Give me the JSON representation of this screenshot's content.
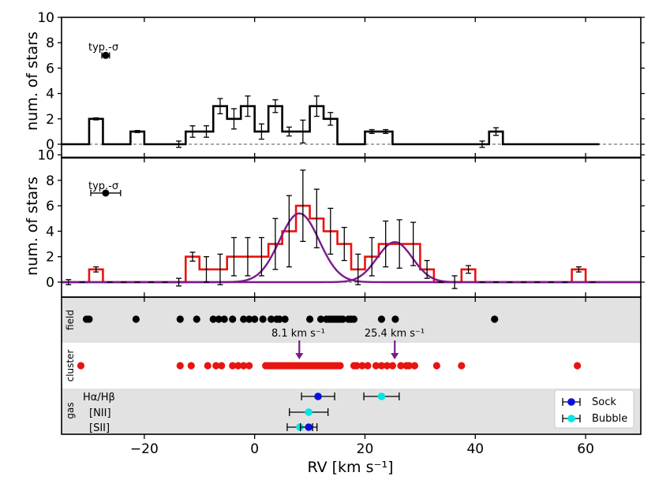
{
  "chart_data": {
    "type": "bar",
    "xlabel": "RV [km s⁻¹]",
    "xlim": [
      -35,
      70
    ],
    "xticks": [
      -20,
      0,
      20,
      40,
      60
    ],
    "bin_width": 2.5,
    "top_panel": {
      "ylabel": "num. of stars",
      "ylim": [
        0,
        10
      ],
      "yticks": [
        0,
        2,
        4,
        6,
        8,
        10
      ],
      "typ_sigma_label": "typ.-σ",
      "typ_sigma_point": {
        "x": -27,
        "y": 7,
        "xerr": 0.7
      },
      "bin_starts": [
        -35,
        -32.5,
        -30,
        -27.5,
        -25,
        -22.5,
        -20,
        -17.5,
        -15,
        -12.5,
        -10,
        -7.5,
        -5,
        -2.5,
        0,
        2.5,
        5,
        7.5,
        10,
        12.5,
        15,
        17.5,
        20,
        22.5,
        25,
        27.5,
        30,
        32.5,
        35,
        37.5,
        40,
        42.5,
        45,
        47.5,
        50,
        52.5,
        55,
        57.5,
        60
      ],
      "counts": [
        0,
        0,
        2,
        0,
        0,
        1,
        0,
        0,
        0,
        1,
        1,
        3,
        2,
        3,
        1,
        3,
        1,
        1,
        3,
        2,
        0,
        0,
        1,
        1,
        0,
        0,
        0,
        0,
        0,
        0,
        0,
        1,
        0,
        0,
        0,
        0,
        0,
        0,
        0
      ],
      "errors": [
        0,
        0,
        0.08,
        0,
        0,
        0.08,
        0,
        0,
        0.25,
        0.45,
        0.45,
        0.6,
        0.8,
        0.8,
        0.6,
        0.5,
        0.35,
        0.9,
        0.8,
        0.5,
        0,
        0,
        0.15,
        0.15,
        0,
        0,
        0,
        0,
        0,
        0,
        0.25,
        0.3,
        0,
        0,
        0,
        0,
        0,
        0,
        0
      ]
    },
    "middle_panel": {
      "ylabel": "num. of stars",
      "ylim": [
        -0.7,
        10
      ],
      "yticks": [
        0,
        2,
        4,
        6,
        8,
        10
      ],
      "typ_sigma_label": "typ.-σ",
      "typ_sigma_point": {
        "x": -27,
        "y": 7,
        "xerr": 2.7
      },
      "bin_starts": [
        -35,
        -32.5,
        -30,
        -27.5,
        -25,
        -22.5,
        -20,
        -17.5,
        -15,
        -12.5,
        -10,
        -7.5,
        -5,
        -2.5,
        0,
        2.5,
        5,
        7.5,
        10,
        12.5,
        15,
        17.5,
        20,
        22.5,
        25,
        27.5,
        30,
        32.5,
        35,
        37.5,
        40,
        42.5,
        45,
        47.5,
        50,
        52.5,
        55,
        57.5,
        60
      ],
      "counts": [
        0,
        0,
        1,
        0,
        0,
        0,
        0,
        0,
        0,
        2,
        1,
        1,
        2,
        2,
        2,
        3,
        4,
        6,
        5,
        4,
        3,
        1,
        2,
        3,
        3,
        3,
        1,
        0,
        0,
        1,
        0,
        0,
        0,
        0,
        0,
        0,
        0,
        1,
        0
      ],
      "errors": [
        0.2,
        0,
        0.2,
        0,
        0,
        0,
        0,
        0,
        0.3,
        0.35,
        1.0,
        1.2,
        1.5,
        1.5,
        1.5,
        2.0,
        2.8,
        2.8,
        2.3,
        1.8,
        1.3,
        1.2,
        1.5,
        1.8,
        1.9,
        1.7,
        0.7,
        0,
        0.5,
        0.3,
        0,
        0,
        0,
        0,
        0,
        0,
        0,
        0.2,
        0
      ],
      "series": [
        {
          "name": "gaussian-1",
          "mean": 8.1,
          "sigma": 3.6,
          "amplitude": 5.4
        },
        {
          "name": "gaussian-2",
          "mean": 25.4,
          "sigma": 3.2,
          "amplitude": 3.15
        }
      ]
    },
    "bottom_panel": {
      "rows": [
        "field",
        "cluster",
        "gas"
      ],
      "field_stars": [
        -30.5,
        -30,
        -21.5,
        -13.5,
        -10.5,
        -7.5,
        -6.5,
        -5.5,
        -4,
        -2,
        -1,
        0,
        1.5,
        3,
        4,
        4.5,
        5.5,
        10,
        12,
        13,
        13.5,
        14,
        14.5,
        15,
        15.5,
        16,
        17,
        17.5,
        18,
        23,
        25.5,
        43.5
      ],
      "cluster_stars": [
        -31.5,
        -13.5,
        -11.5,
        -8.5,
        -7,
        -6,
        -4,
        -3,
        -2,
        -1,
        2,
        2.5,
        3,
        3.5,
        4,
        4.5,
        5,
        5.5,
        6,
        6.5,
        7,
        7.5,
        8,
        8.5,
        9,
        9.5,
        10,
        10.5,
        11,
        11.5,
        12,
        12.5,
        13,
        13.5,
        14,
        14.5,
        15,
        15.5,
        18,
        18.5,
        19.5,
        20.5,
        22,
        23,
        24,
        25,
        26.5,
        27.5,
        28,
        29,
        33,
        37.5,
        58.5
      ],
      "arrows": [
        {
          "x": 8.1,
          "label": "8.1 km s⁻¹"
        },
        {
          "x": 25.4,
          "label": "25.4 km s⁻¹"
        }
      ],
      "gas_lines": [
        {
          "label": "Hα/Hβ",
          "sock": {
            "x": 11.5,
            "err": 3
          },
          "bubble": {
            "x": 23,
            "err": 3.2
          }
        },
        {
          "label": "[NII]",
          "sock": null,
          "bubble": {
            "x": 9.8,
            "err": 3.5
          }
        },
        {
          "label": "[SII]",
          "sock": {
            "x": 9.8,
            "err": 1.5
          },
          "bubble": {
            "x": 8.2,
            "err": 2.3
          }
        }
      ],
      "legend": [
        {
          "name": "Sock",
          "color": "#0a10e0"
        },
        {
          "name": "Bubble",
          "color": "#00e5e5"
        }
      ]
    },
    "colors": {
      "top_hist": "#000000",
      "mid_hist": "#e8140f",
      "gaussian": "#7a1a8c",
      "field": "#000000",
      "cluster": "#e8140f",
      "band_bg": "#e2e2e2"
    }
  }
}
